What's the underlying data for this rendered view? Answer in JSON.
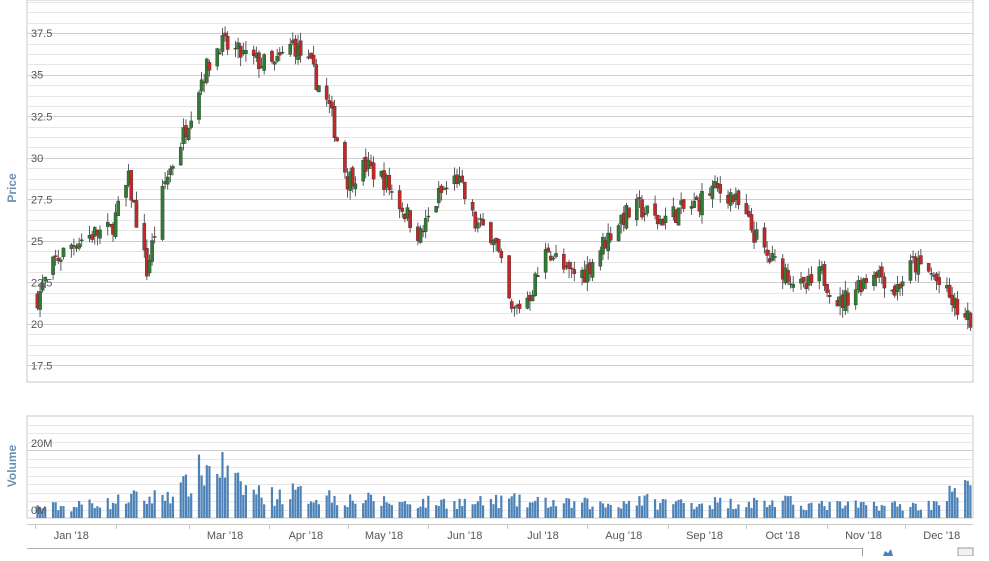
{
  "chart_data": [
    {
      "type": "candlestick",
      "title": "",
      "ylabel": "Price",
      "ylim": [
        16.5,
        39.5
      ],
      "yticks": [
        17.5,
        20,
        22.5,
        25,
        27.5,
        30,
        32.5,
        35,
        37.5
      ],
      "ytick_labels": [
        "17.5",
        "20",
        "22.5",
        "25",
        "27.5",
        "30",
        "32.5",
        "35",
        "37.5"
      ],
      "grid": true,
      "colors": {
        "up": "#2e7d32",
        "down": "#c62828"
      },
      "x": [
        "2018-01-02",
        "2018-01-09",
        "2018-01-16",
        "2018-01-23",
        "2018-01-30",
        "2018-02-06",
        "2018-02-13",
        "2018-02-20",
        "2018-02-27",
        "2018-03-06",
        "2018-03-13",
        "2018-03-20",
        "2018-03-27",
        "2018-04-03",
        "2018-04-10",
        "2018-04-17",
        "2018-04-24",
        "2018-05-01",
        "2018-05-08",
        "2018-05-15",
        "2018-05-22",
        "2018-05-29",
        "2018-06-05",
        "2018-06-12",
        "2018-06-19",
        "2018-06-26",
        "2018-07-03",
        "2018-07-10",
        "2018-07-17",
        "2018-07-24",
        "2018-07-31",
        "2018-08-07",
        "2018-08-14",
        "2018-08-21",
        "2018-08-28",
        "2018-09-04",
        "2018-09-11",
        "2018-09-18",
        "2018-09-25",
        "2018-10-02",
        "2018-10-09",
        "2018-10-16",
        "2018-10-23",
        "2018-10-30",
        "2018-11-06",
        "2018-11-13",
        "2018-11-20",
        "2018-11-27",
        "2018-12-04",
        "2018-12-11",
        "2018-12-18",
        "2018-12-24"
      ],
      "close": [
        21.6,
        23.8,
        24.9,
        25.4,
        25.6,
        28.6,
        23.2,
        28.5,
        31.4,
        34.8,
        36.9,
        36.3,
        35.8,
        35.5,
        36.9,
        35.4,
        33.0,
        28.7,
        29.5,
        28.7,
        27.0,
        25.3,
        27.7,
        28.8,
        26.0,
        25.4,
        20.6,
        21.8,
        24.6,
        23.0,
        23.1,
        24.8,
        26.4,
        27.0,
        26.2,
        26.7,
        27.1,
        28.1,
        27.8,
        26.0,
        24.0,
        23.2,
        22.0,
        23.0,
        21.2,
        22.4,
        23.3,
        22.0,
        23.6,
        23.0,
        21.5,
        20.2
      ],
      "volume_panel": {
        "type": "bar",
        "ylabel": "Volume",
        "yticks": [
          0,
          20
        ],
        "ytick_labels": [
          "0M",
          "20M"
        ],
        "unit": "M",
        "ylim": [
          0,
          30
        ],
        "values": [
          3.1,
          3.4,
          3.2,
          4.8,
          4.2,
          6.1,
          5.4,
          7.0,
          8.6,
          13.5,
          15.8,
          9.4,
          7.7,
          6.3,
          7.5,
          6.2,
          6.6,
          5.5,
          5.3,
          4.9,
          4.4,
          4.6,
          4.6,
          4.7,
          4.3,
          4.9,
          5.2,
          4.4,
          4.6,
          4.1,
          4.3,
          3.8,
          4.3,
          5.6,
          4.4,
          4.6,
          4.4,
          4.6,
          4.3,
          4.8,
          4.3,
          4.7,
          4.2,
          3.6,
          3.7,
          3.6,
          3.9,
          3.7,
          3.5,
          3.8,
          6.8,
          8.2
        ],
        "color": "#4d82b8"
      },
      "x_tick_labels": [
        "Jan '18",
        "Mar '18",
        "Apr '18",
        "May '18",
        "Jun '18",
        "Jul '18",
        "Aug '18",
        "Sep '18",
        "Oct '18",
        "Nov '18",
        "Dec '18"
      ]
    }
  ]
}
